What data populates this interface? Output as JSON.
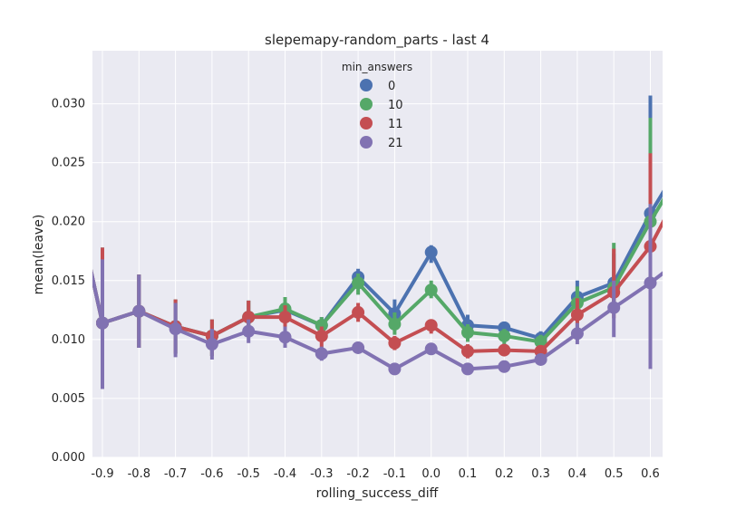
{
  "chart_data": {
    "type": "line",
    "title": "slepemapy-random_parts - last 4",
    "xlabel": "rolling_success_diff",
    "ylabel": "mean(leave)",
    "ylim": [
      0,
      0.0345
    ],
    "yticks": [
      "0.000",
      "0.005",
      "0.010",
      "0.015",
      "0.020",
      "0.025",
      "0.030"
    ],
    "ytick_values": [
      0,
      0.005,
      0.01,
      0.015,
      0.02,
      0.025,
      0.03
    ],
    "categories": [
      "-0.9",
      "-0.8",
      "-0.7",
      "-0.6",
      "-0.5",
      "-0.4",
      "-0.3",
      "-0.2",
      "-0.1",
      "0.0",
      "0.1",
      "0.2",
      "0.3",
      "0.4",
      "0.5",
      "0.6"
    ],
    "grid": true,
    "legend": {
      "title": "min_answers",
      "placement": "top-center"
    },
    "series": [
      {
        "name": "0",
        "color": "#4c72b0",
        "values": [
          0.0114,
          0.0124,
          0.0111,
          0.0103,
          0.0119,
          0.0125,
          0.0112,
          0.0153,
          0.0122,
          0.0174,
          0.0112,
          0.011,
          0.0101,
          0.0136,
          0.0148,
          0.0207
        ],
        "err_low": [
          0.0058,
          0.0093,
          0.0088,
          0.0086,
          0.0105,
          0.0114,
          0.0098,
          0.0144,
          0.0108,
          0.0165,
          0.0102,
          0.0101,
          0.0093,
          0.0116,
          0.0128,
          0.0095
        ],
        "err_high": [
          0.0178,
          0.0155,
          0.0134,
          0.0117,
          0.0133,
          0.0135,
          0.0119,
          0.016,
          0.0134,
          0.018,
          0.0121,
          0.0115,
          0.0107,
          0.015,
          0.0173,
          0.0307
        ],
        "edge_start": 0.0255,
        "edge_end": 0.0258
      },
      {
        "name": "10",
        "color": "#55a868",
        "values": [
          0.0114,
          0.0124,
          0.0111,
          0.0103,
          0.0119,
          0.0126,
          0.0112,
          0.0148,
          0.0113,
          0.0142,
          0.0106,
          0.0103,
          0.0098,
          0.0131,
          0.0144,
          0.02
        ],
        "err_low": [
          0.0058,
          0.0093,
          0.0088,
          0.0086,
          0.0105,
          0.0114,
          0.0098,
          0.0138,
          0.0104,
          0.0135,
          0.0098,
          0.0095,
          0.0091,
          0.0114,
          0.0123,
          0.0095
        ],
        "err_high": [
          0.0178,
          0.0155,
          0.0134,
          0.0117,
          0.0133,
          0.0136,
          0.0119,
          0.0156,
          0.0123,
          0.015,
          0.0113,
          0.0109,
          0.0104,
          0.0145,
          0.0182,
          0.0288
        ],
        "edge_start": 0.0255,
        "edge_end": 0.0252
      },
      {
        "name": "11",
        "color": "#c44e52",
        "values": [
          0.0114,
          0.0124,
          0.0111,
          0.0103,
          0.0119,
          0.0119,
          0.0103,
          0.0123,
          0.0097,
          0.0112,
          0.009,
          0.0091,
          0.009,
          0.0121,
          0.014,
          0.0179
        ],
        "err_low": [
          0.0058,
          0.0093,
          0.0088,
          0.0086,
          0.0105,
          0.0108,
          0.0093,
          0.0115,
          0.0091,
          0.0105,
          0.0084,
          0.0086,
          0.0085,
          0.0106,
          0.0118,
          0.0085
        ],
        "err_high": [
          0.0178,
          0.0155,
          0.0134,
          0.0117,
          0.0133,
          0.0129,
          0.0111,
          0.0131,
          0.0103,
          0.0117,
          0.0096,
          0.0096,
          0.0095,
          0.0135,
          0.0177,
          0.0258
        ],
        "edge_start": 0.0255,
        "edge_end": 0.0238
      },
      {
        "name": "21",
        "color": "#8172b2",
        "values": [
          0.0114,
          0.0124,
          0.0109,
          0.0096,
          0.0107,
          0.0102,
          0.0088,
          0.0093,
          0.0075,
          0.0092,
          0.0075,
          0.0077,
          0.0083,
          0.0105,
          0.0127,
          0.0148
        ],
        "err_low": [
          0.0058,
          0.0093,
          0.0085,
          0.0083,
          0.0097,
          0.0093,
          0.0082,
          0.0088,
          0.0071,
          0.0087,
          0.0071,
          0.0073,
          0.0078,
          0.0096,
          0.0102,
          0.0075
        ],
        "err_high": [
          0.0168,
          0.0155,
          0.0131,
          0.0109,
          0.0117,
          0.0111,
          0.0094,
          0.0098,
          0.0079,
          0.0097,
          0.008,
          0.0081,
          0.0088,
          0.0114,
          0.015,
          0.0215
        ],
        "edge_start": 0.0255,
        "edge_end": 0.0172
      }
    ]
  }
}
